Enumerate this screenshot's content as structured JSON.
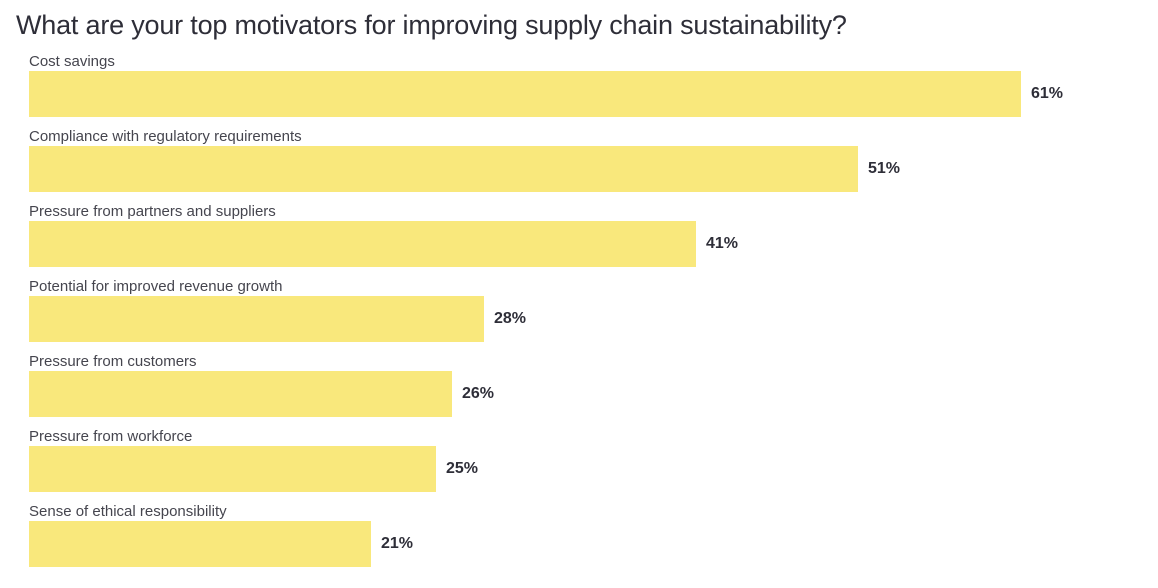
{
  "page": {
    "title": "What are your top motivators for improving supply chain sustainability?"
  },
  "colors": {
    "background": "#FFFFFF",
    "bar_fill": "#F9E87C",
    "title_text": "#2E2E38",
    "label_text": "#45454E",
    "value_text": "#2E2E38"
  },
  "chart_data": {
    "type": "bar",
    "orientation": "horizontal",
    "title": "What are your top motivators for improving supply chain sustainability?",
    "categories": [
      "Cost savings",
      "Compliance with regulatory requirements",
      "Pressure from partners and suppliers",
      "Potential for improved revenue growth",
      "Pressure from customers",
      "Pressure from workforce",
      "Sense of ethical responsibility"
    ],
    "values": [
      61,
      51,
      41,
      28,
      26,
      25,
      21
    ],
    "value_labels": [
      "61%",
      "51%",
      "41%",
      "28%",
      "26%",
      "25%",
      "21%"
    ],
    "unit": "%",
    "xlabel": "",
    "ylabel": "",
    "xlim": [
      0,
      68
    ],
    "grid": false,
    "legend": false,
    "axes_visible": false,
    "value_label_position": "right-of-bar",
    "category_label_position": "above-bar",
    "sort": "descending"
  }
}
